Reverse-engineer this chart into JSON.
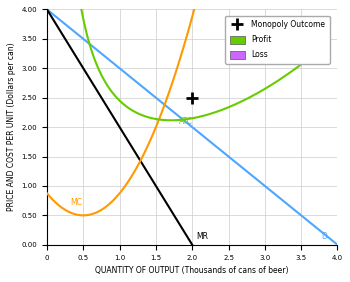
{
  "xlabel": "QUANTITY OF OUTPUT (Thousands of cans of beer)",
  "ylabel": "PRICE AND COST PER UNIT (Dollars per can)",
  "xlim": [
    0,
    4.0
  ],
  "ylim": [
    0,
    4.0
  ],
  "xticks": [
    0,
    0.5,
    1.0,
    1.5,
    2.0,
    2.5,
    3.0,
    3.5,
    4.0
  ],
  "yticks": [
    0,
    0.5,
    1.0,
    1.5,
    2.0,
    2.5,
    3.0,
    3.5,
    4.0
  ],
  "demand_color": "#4da6ff",
  "mr_color": "#000000",
  "mc_color": "#ff9900",
  "atc_color": "#66cc00",
  "monopoly_point_x": 2.0,
  "monopoly_point_y": 2.5,
  "legend_labels": [
    "Monopoly Outcome",
    "Profit",
    "Loss"
  ],
  "profit_color": "#66cc00",
  "loss_color": "#cc66ff",
  "bg_color": "#ffffff",
  "grid_color": "#cccccc"
}
